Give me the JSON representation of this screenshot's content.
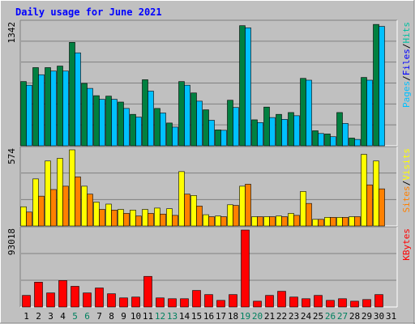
{
  "chart_data": {
    "type": "bar",
    "title": "Daily usage for June 2021",
    "categories": [
      "1",
      "2",
      "3",
      "4",
      "5",
      "6",
      "7",
      "8",
      "9",
      "10",
      "11",
      "12",
      "13",
      "14",
      "15",
      "16",
      "17",
      "18",
      "19",
      "20",
      "21",
      "22",
      "23",
      "24",
      "25",
      "26",
      "27",
      "28",
      "29",
      "30",
      "31"
    ],
    "weekend_days": [
      "5",
      "6",
      "12",
      "13",
      "19",
      "20",
      "26",
      "27"
    ],
    "panels": [
      {
        "max_label": "1342",
        "ylim": [
          0,
          1342
        ],
        "legend": [
          "Pages",
          "/",
          "Files",
          "/",
          "Hits"
        ],
        "series": [
          {
            "name": "Hits",
            "color": "#008040",
            "values": [
              705,
              858,
              858,
              875,
              1135,
              685,
              550,
              545,
              480,
              345,
              725,
              410,
              250,
              705,
              580,
              395,
              175,
              500,
              1318,
              285,
              425,
              345,
              365,
              740,
              165,
              130,
              365,
              85,
              750,
              1332,
              0
            ]
          },
          {
            "name": "Files",
            "color": "#0000ff",
            "values": [
              0,
              0,
              0,
              0,
              0,
              0,
              0,
              0,
              0,
              0,
              0,
              0,
              0,
              0,
              0,
              0,
              0,
              0,
              0,
              0,
              0,
              0,
              0,
              0,
              0,
              0,
              0,
              0,
              0,
              0,
              0
            ]
          },
          {
            "name": "Pages",
            "color": "#00c0ff",
            "values": [
              665,
              780,
              820,
              820,
              1020,
              630,
              510,
              510,
              410,
              315,
              600,
              360,
              205,
              665,
              490,
              280,
              170,
              420,
              1295,
              255,
              310,
              290,
              330,
              720,
              135,
              100,
              245,
              70,
              720,
              1310,
              0
            ]
          }
        ]
      },
      {
        "max_label": "574",
        "ylim": [
          0,
          574
        ],
        "legend": [
          "Sites",
          "/",
          "Visits"
        ],
        "series": [
          {
            "name": "Visits",
            "color": "#ffff00",
            "values": [
              145,
              355,
              490,
              510,
              574,
              300,
              180,
              165,
              125,
              120,
              125,
              135,
              130,
              410,
              230,
              85,
              75,
              160,
              300,
              70,
              70,
              75,
              95,
              260,
              50,
              65,
              65,
              70,
              540,
              490,
              0
            ]
          },
          {
            "name": "Sites",
            "color": "#ff8000",
            "values": [
              105,
              225,
              275,
              300,
              370,
              240,
              125,
              120,
              95,
              75,
              95,
              90,
              80,
              240,
              150,
              70,
              70,
              155,
              315,
              70,
              70,
              70,
              80,
              170,
              50,
              65,
              65,
              70,
              310,
              280,
              0
            ]
          }
        ]
      },
      {
        "max_label": "93018",
        "ylim": [
          0,
          93018
        ],
        "legend": [
          "KBytes"
        ],
        "series": [
          {
            "name": "KBytes",
            "color": "#ff0000",
            "values": [
              14000,
              30000,
              17000,
              32000,
              25000,
              17000,
              23000,
              16000,
              11000,
              12000,
              37000,
              11000,
              10000,
              10000,
              20000,
              15000,
              8000,
              15000,
              93018,
              7000,
              14000,
              19000,
              12000,
              10000,
              14000,
              8000,
              10000,
              7000,
              9000,
              15000,
              0
            ]
          }
        ]
      }
    ]
  }
}
